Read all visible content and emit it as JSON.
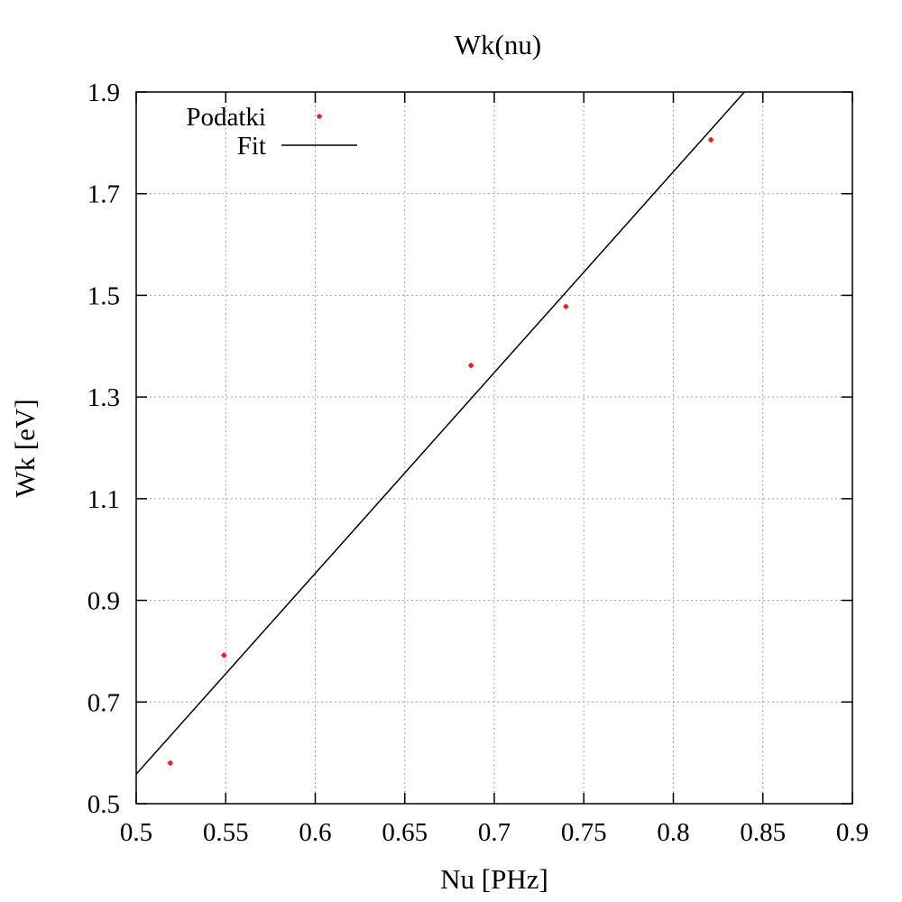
{
  "chart_data": {
    "type": "scatter",
    "title": "Wk(nu)",
    "xlabel": "Nu [PHz]",
    "ylabel": "Wk [eV]",
    "xlim": [
      0.5,
      0.9
    ],
    "ylim": [
      0.5,
      1.9
    ],
    "xticks": [
      0.5,
      0.55,
      0.6,
      0.65,
      0.7,
      0.75,
      0.8,
      0.85,
      0.9
    ],
    "xtick_labels": [
      "0.5",
      "0.55",
      "0.6",
      "0.65",
      "0.7",
      "0.75",
      "0.8",
      "0.85",
      "0.9"
    ],
    "yticks": [
      0.5,
      0.7,
      0.9,
      1.1,
      1.3,
      1.5,
      1.7,
      1.9
    ],
    "ytick_labels": [
      "0.5",
      "0.7",
      "0.9",
      "1.1",
      "1.3",
      "1.5",
      "1.7",
      "1.9"
    ],
    "grid": true,
    "legend_position": "top-left",
    "series": [
      {
        "name": "Podatki",
        "kind": "points",
        "color": "#e41a1c",
        "x": [
          0.519,
          0.549,
          0.687,
          0.74,
          0.821
        ],
        "y": [
          0.58,
          0.792,
          1.362,
          1.478,
          1.806
        ]
      },
      {
        "name": "Fit",
        "kind": "line",
        "color": "#000000",
        "x": [
          0.5,
          0.8397
        ],
        "y": [
          0.558,
          1.9
        ]
      }
    ]
  }
}
